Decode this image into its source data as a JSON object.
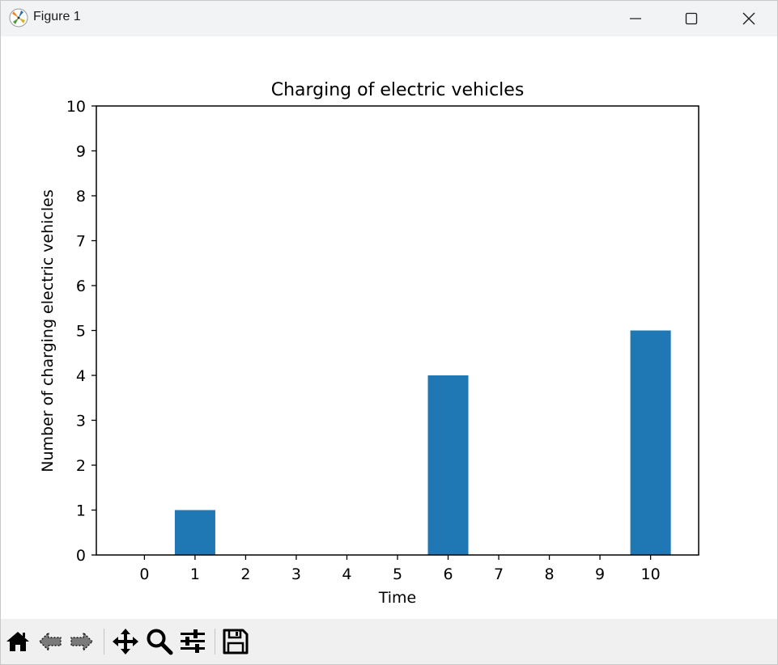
{
  "window": {
    "title": "Figure 1",
    "buttons": [
      "minimize",
      "maximize",
      "close"
    ]
  },
  "toolbar": {
    "tools": [
      {
        "name": "home",
        "icon": "home-icon"
      },
      {
        "name": "back",
        "icon": "back-arrow-icon"
      },
      {
        "name": "forward",
        "icon": "forward-arrow-icon"
      },
      {
        "name": "pan",
        "icon": "move-icon"
      },
      {
        "name": "zoom",
        "icon": "zoom-icon"
      },
      {
        "name": "configure-subplots",
        "icon": "sliders-icon"
      },
      {
        "name": "save",
        "icon": "floppy-disk-icon"
      }
    ]
  },
  "colors": {
    "bar": "#1f77b4",
    "titlebar": "#f2f3f5",
    "toolbar": "#f0f0f0"
  },
  "chart_data": {
    "type": "bar",
    "title": "Charging of electric vehicles",
    "xlabel": "Time",
    "ylabel": "Number of charging electric vehicles",
    "categories": [
      "0",
      "1",
      "2",
      "3",
      "4",
      "5",
      "6",
      "7",
      "8",
      "9",
      "10"
    ],
    "x": [
      0,
      1,
      2,
      3,
      4,
      5,
      6,
      7,
      8,
      9,
      10
    ],
    "values": [
      0,
      1,
      0,
      0,
      0,
      0,
      4,
      0,
      0,
      0,
      5
    ],
    "xlim": [
      -0.95,
      10.95
    ],
    "ylim": [
      0,
      10
    ],
    "yticks": [
      "0",
      "1",
      "2",
      "3",
      "4",
      "5",
      "6",
      "7",
      "8",
      "9",
      "10"
    ],
    "grid": false,
    "legend": "none"
  }
}
